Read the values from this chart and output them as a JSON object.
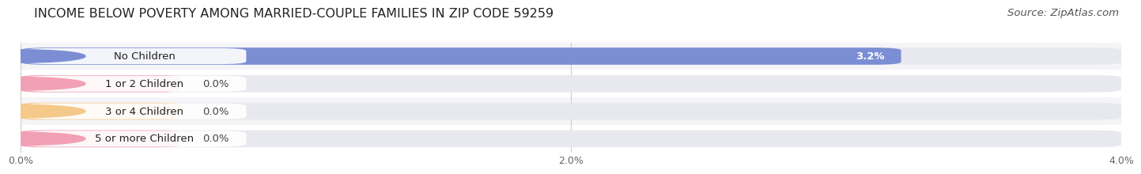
{
  "title": "INCOME BELOW POVERTY AMONG MARRIED-COUPLE FAMILIES IN ZIP CODE 59259",
  "source": "Source: ZipAtlas.com",
  "categories": [
    "No Children",
    "1 or 2 Children",
    "3 or 4 Children",
    "5 or more Children"
  ],
  "values": [
    3.2,
    0.0,
    0.0,
    0.0
  ],
  "bar_colors": [
    "#7b8ed4",
    "#f2a0b5",
    "#f5c98a",
    "#f2a0b5"
  ],
  "bar_bg_color": "#e8e8ef",
  "xlim": [
    0,
    4.0
  ],
  "xticks": [
    0.0,
    2.0,
    4.0
  ],
  "xtick_labels": [
    "0.0%",
    "2.0%",
    "4.0%"
  ],
  "title_fontsize": 11.5,
  "source_fontsize": 9.5,
  "label_fontsize": 9.5,
  "value_fontsize": 9.5,
  "bar_height": 0.62,
  "fig_width": 14.06,
  "fig_height": 2.32,
  "background_color": "#ffffff",
  "grid_color": "#cccccc",
  "row_bg_colors": [
    "#f5f5f8",
    "#ffffff",
    "#f5f5f8",
    "#ffffff"
  ]
}
